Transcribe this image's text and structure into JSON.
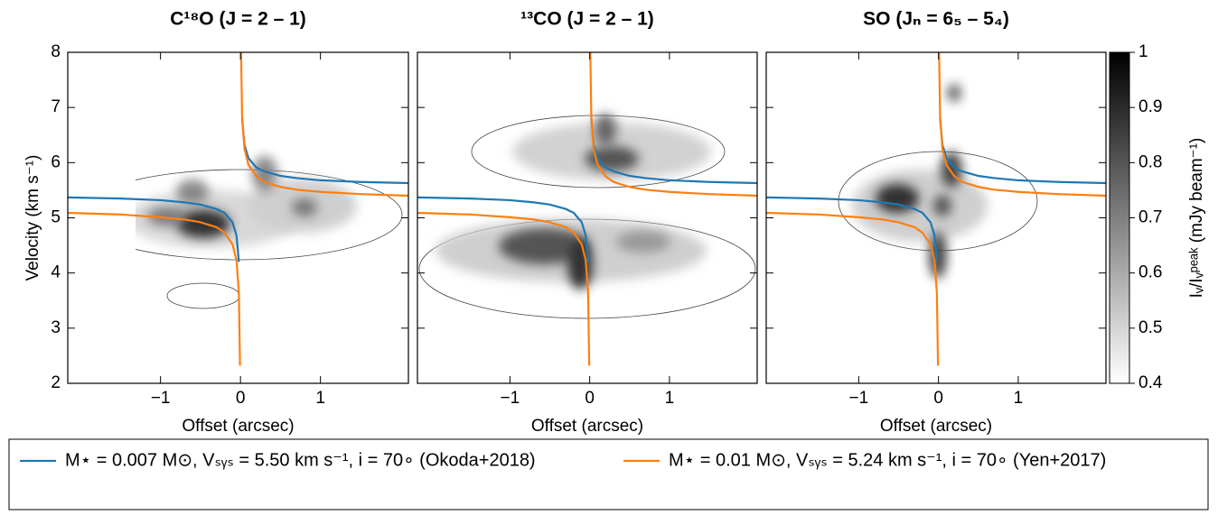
{
  "chart_data": [
    {
      "type": "line",
      "title": "C¹⁸O (J = 2 – 1)",
      "xlabel": "Offset (arcsec)",
      "ylabel": "Velocity (km s⁻¹)",
      "xlim": [
        -2.16,
        2.1
      ],
      "ylim": [
        2,
        8
      ],
      "xticks": [
        {
          "value": -1,
          "label": "−1"
        },
        0,
        1
      ],
      "yticks": [
        2,
        3,
        4,
        5,
        6,
        7,
        8
      ],
      "x": [
        -2.16,
        -1.5,
        -1,
        -0.7,
        -0.5,
        -0.3,
        -0.2,
        -0.1,
        -0.05,
        -0.02,
        -0.006,
        null,
        0.006,
        0.02,
        0.05,
        0.1,
        0.2,
        0.3,
        0.5,
        0.7,
        1,
        1.5,
        2.1
      ],
      "series": [
        {
          "name": "M⋆ = 0.007 M⊙, Vₛᵧₛ = 5.50 km s⁻¹, i = 70∘  (Okoda+2018)",
          "color": "#1f77b4",
          "values": [
            5.37,
            5.35,
            5.32,
            5.28,
            5.24,
            5.16,
            5.09,
            4.92,
            4.68,
            4.2,
            null,
            null,
            null,
            6.8,
            6.32,
            6.08,
            5.91,
            5.84,
            5.76,
            5.72,
            5.68,
            5.65,
            5.63
          ]
        },
        {
          "name": "M⋆ = 0.01 M⊙, Vₛᵧₛ = 5.24 km s⁻¹, i = 70∘  (Yen+2017)",
          "color": "#ff7f0e",
          "values": [
            5.09,
            5.06,
            5.01,
            4.97,
            4.92,
            4.83,
            4.73,
            4.52,
            4.23,
            3.64,
            2.32,
            null,
            8.16,
            6.84,
            6.25,
            5.96,
            5.75,
            5.65,
            5.56,
            5.51,
            5.47,
            5.43,
            5.4
          ]
        }
      ]
    },
    {
      "type": "line",
      "title": "¹³CO (J = 2 – 1)",
      "xlabel": "Offset (arcsec)",
      "xlim": [
        -2.16,
        2.1
      ],
      "ylim": [
        2,
        8
      ],
      "xticks": [
        {
          "value": -1,
          "label": "−1"
        },
        0,
        1
      ],
      "yticks": [
        2,
        3,
        4,
        5,
        6,
        7,
        8
      ],
      "x": [
        -2.16,
        -1.5,
        -1,
        -0.7,
        -0.5,
        -0.3,
        -0.2,
        -0.1,
        -0.05,
        -0.02,
        -0.006,
        null,
        0.006,
        0.02,
        0.05,
        0.1,
        0.2,
        0.3,
        0.5,
        0.7,
        1,
        1.5,
        2.1
      ],
      "series": [
        {
          "color": "#1f77b4",
          "values": [
            5.37,
            5.35,
            5.32,
            5.28,
            5.24,
            5.16,
            5.09,
            4.92,
            4.68,
            4.2,
            null,
            null,
            null,
            6.8,
            6.32,
            6.08,
            5.91,
            5.84,
            5.76,
            5.72,
            5.68,
            5.65,
            5.63
          ]
        },
        {
          "color": "#ff7f0e",
          "values": [
            5.09,
            5.06,
            5.01,
            4.97,
            4.92,
            4.83,
            4.73,
            4.52,
            4.23,
            3.64,
            2.32,
            null,
            8.16,
            6.84,
            6.25,
            5.96,
            5.75,
            5.65,
            5.56,
            5.51,
            5.47,
            5.43,
            5.4
          ]
        }
      ]
    },
    {
      "type": "line",
      "title": "SO (Jₙ = 6₅ – 5₄)",
      "xlabel": "Offset (arcsec)",
      "xlim": [
        -2.16,
        2.1
      ],
      "ylim": [
        2,
        8
      ],
      "xticks": [
        {
          "value": -1,
          "label": "−1"
        },
        0,
        1
      ],
      "yticks": [
        2,
        3,
        4,
        5,
        6,
        7,
        8
      ],
      "x": [
        -2.16,
        -1.5,
        -1,
        -0.7,
        -0.5,
        -0.3,
        -0.2,
        -0.1,
        -0.05,
        -0.02,
        -0.006,
        null,
        0.006,
        0.02,
        0.05,
        0.1,
        0.2,
        0.3,
        0.5,
        0.7,
        1,
        1.5,
        2.1
      ],
      "series": [
        {
          "color": "#1f77b4",
          "values": [
            5.37,
            5.35,
            5.32,
            5.28,
            5.24,
            5.16,
            5.09,
            4.92,
            4.68,
            4.2,
            null,
            null,
            null,
            6.8,
            6.32,
            6.08,
            5.91,
            5.84,
            5.76,
            5.72,
            5.68,
            5.65,
            5.63
          ]
        },
        {
          "color": "#ff7f0e",
          "values": [
            5.09,
            5.06,
            5.01,
            4.97,
            4.92,
            4.83,
            4.73,
            4.52,
            4.23,
            3.64,
            2.32,
            null,
            8.16,
            6.84,
            6.25,
            5.96,
            5.75,
            5.65,
            5.56,
            5.51,
            5.47,
            5.43,
            5.4
          ]
        }
      ],
      "colorbar": {
        "label": "Iᵥ/Iᵥᵖᵉᵃᵏ (mJy beam⁻¹)",
        "lim": [
          0.4,
          1
        ],
        "ticks": [
          0.4,
          0.5,
          0.6,
          0.7,
          0.8,
          0.9,
          1
        ]
      }
    }
  ]
}
